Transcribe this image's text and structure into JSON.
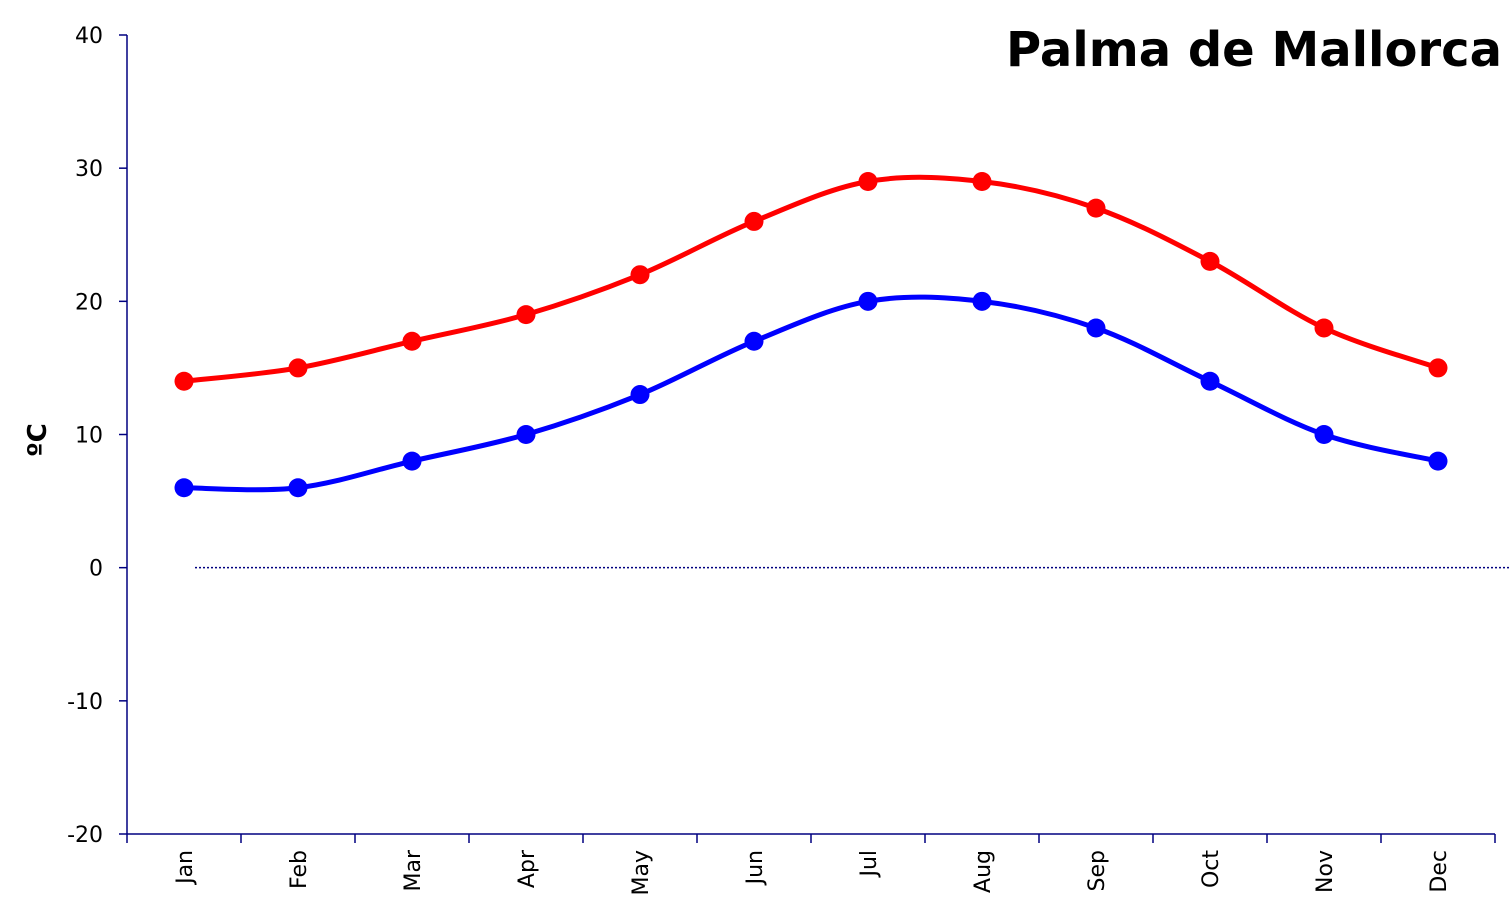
{
  "chart_data": {
    "type": "line",
    "title": "Palma de Mallorca",
    "xlabel": "",
    "ylabel": "ºC",
    "ylim": [
      -20,
      40
    ],
    "yticks": [
      -20,
      -10,
      0,
      10,
      20,
      30,
      40
    ],
    "categories": [
      "Jan",
      "Feb",
      "Mar",
      "Apr",
      "May",
      "Jun",
      "Jul",
      "Aug",
      "Sep",
      "Oct",
      "Nov",
      "Dec"
    ],
    "grid": false,
    "smooth": true,
    "series": [
      {
        "color": "#ff0000",
        "values": [
          14,
          15,
          17,
          19,
          22,
          26,
          29,
          29,
          27,
          23,
          18,
          15
        ]
      },
      {
        "color": "#0000ff",
        "values": [
          6,
          6,
          8,
          10,
          13,
          17,
          20,
          20,
          18,
          14,
          10,
          8
        ]
      }
    ],
    "zero_line": {
      "color": "#000080",
      "style": "dotted"
    },
    "axis_color": "#000080"
  }
}
